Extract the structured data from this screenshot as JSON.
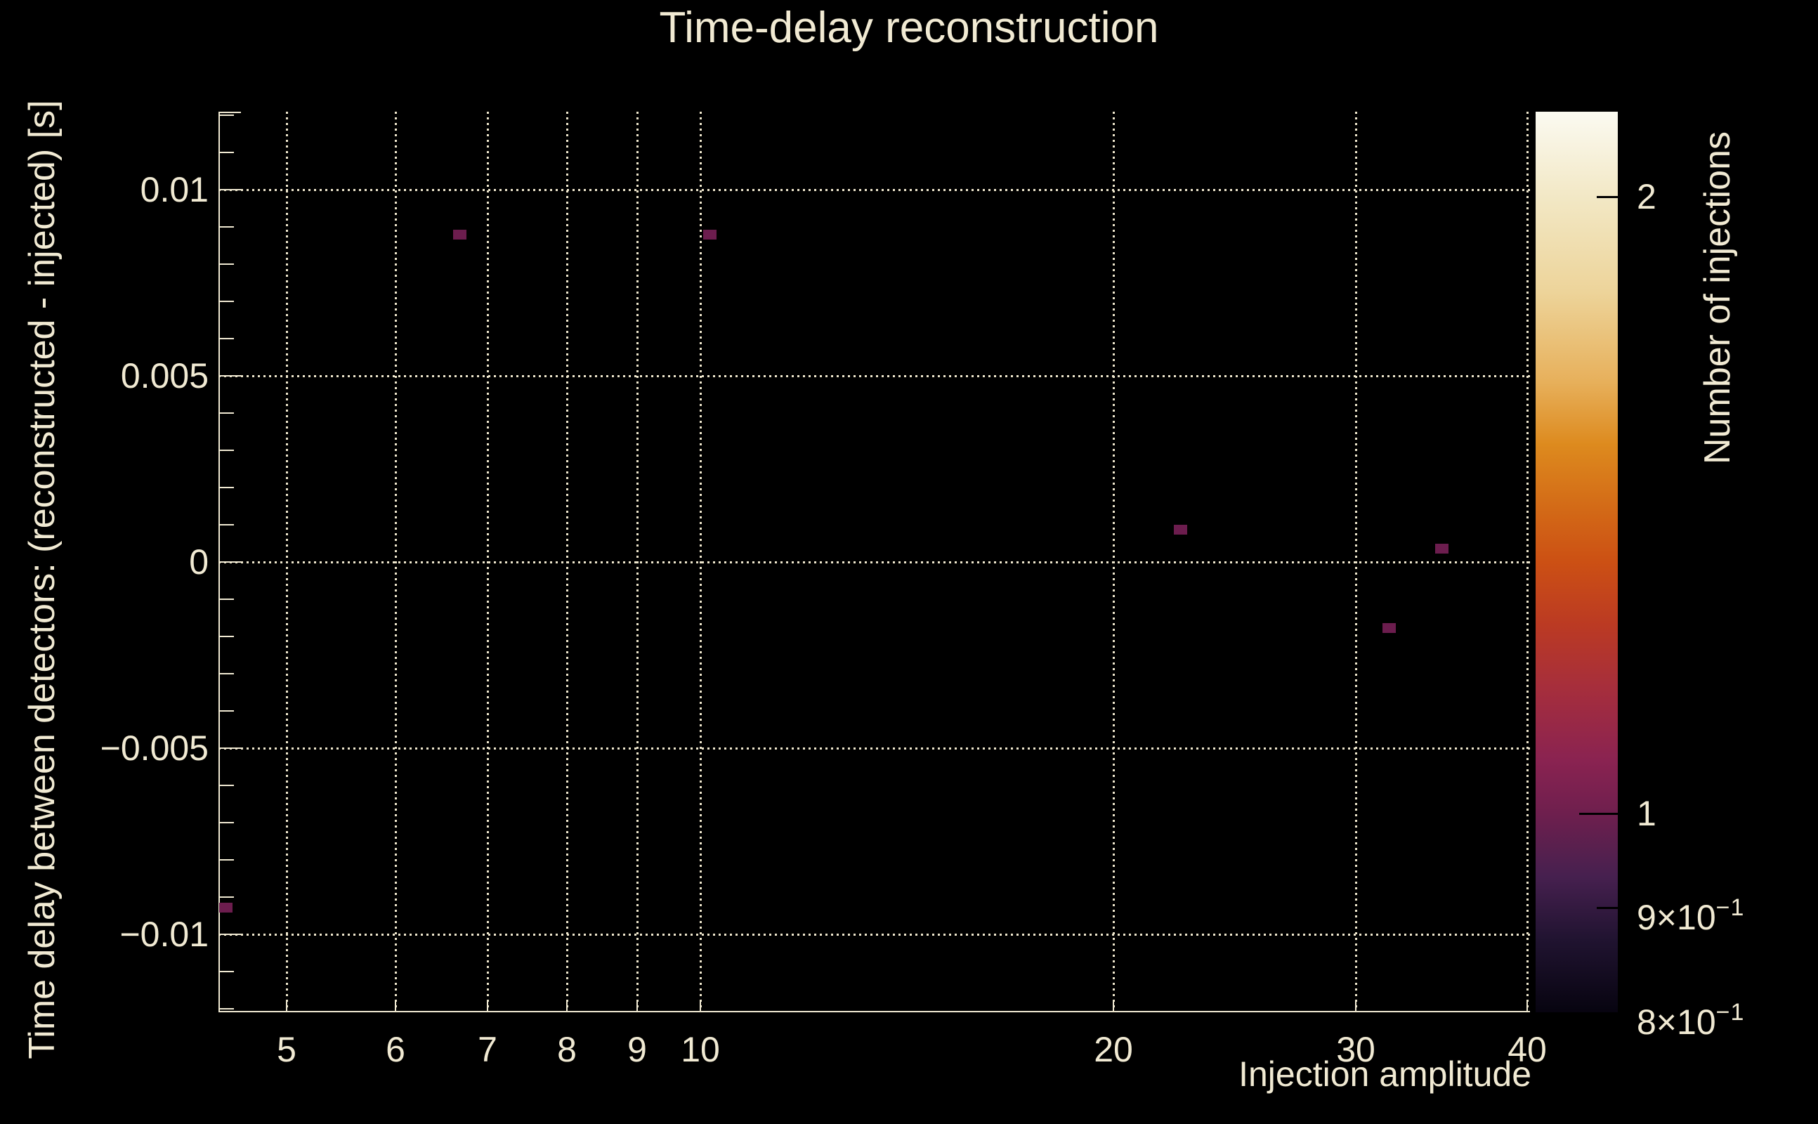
{
  "title": "Time-delay reconstruction",
  "colors": {
    "background": "#000000",
    "text": "#f1ead3",
    "grid": "#efe7cd",
    "axis": "#f1ead3",
    "bin_fill": "#6c1d4e",
    "colorbar_tick": "#000000",
    "colormap_stops": [
      [
        "#fbfaf1",
        0
      ],
      [
        "#f2e7c3",
        10
      ],
      [
        "#edd49a",
        20
      ],
      [
        "#e7b05b",
        30
      ],
      [
        "#dd8a1e",
        37
      ],
      [
        "#d36a17",
        44
      ],
      [
        "#cc5014",
        50
      ],
      [
        "#bb3a23",
        57
      ],
      [
        "#a62e3c",
        64
      ],
      [
        "#8a2351",
        72
      ],
      [
        "#6e1f4e",
        78
      ],
      [
        "#46204f",
        85
      ],
      [
        "#201330",
        92
      ],
      [
        "#070410",
        100
      ]
    ]
  },
  "chart_data": {
    "type": "heatmap",
    "title": "Time-delay reconstruction",
    "xlabel": "Injection amplitude",
    "ylabel": "Time delay between detectors: (reconstructed - injected) [s]",
    "zlabel": "Number of injections",
    "x_scale": "log",
    "y_scale": "linear",
    "z_scale": "log",
    "xlim": [
      4.458,
      40.19
    ],
    "ylim": [
      -0.012094,
      0.012094
    ],
    "zlim": [
      0.8,
      2.2
    ],
    "grid": true,
    "x_ticks": [
      {
        "value": 5,
        "label": "5"
      },
      {
        "value": 6,
        "label": "6"
      },
      {
        "value": 7,
        "label": "7"
      },
      {
        "value": 8,
        "label": "8"
      },
      {
        "value": 9,
        "label": "9"
      },
      {
        "value": 10,
        "label": "10"
      },
      {
        "value": 20,
        "label": "20"
      },
      {
        "value": 30,
        "label": "30"
      },
      {
        "value": 40,
        "label": "40"
      }
    ],
    "y_ticks": [
      {
        "value": 0.01,
        "label": "0.01"
      },
      {
        "value": 0.005,
        "label": "0.005"
      },
      {
        "value": 0,
        "label": "0"
      },
      {
        "value": -0.005,
        "label": "−0.005"
      },
      {
        "value": -0.01,
        "label": "−0.01"
      }
    ],
    "y_minor_tick_step": 0.001,
    "z_ticks": [
      {
        "value": 2,
        "base": "2",
        "exp": "",
        "tick_len": 30
      },
      {
        "value": 1,
        "base": "1",
        "exp": "",
        "tick_len": 55
      },
      {
        "value": 0.9,
        "base": "9×10",
        "exp": "−1",
        "tick_len": 30
      },
      {
        "value": 0.8,
        "base": "8×10",
        "exp": "−1",
        "tick_len": 0
      }
    ],
    "points": [
      {
        "x": 6.68,
        "y": 0.0088,
        "count": 1
      },
      {
        "x": 10.15,
        "y": 0.0088,
        "count": 1
      },
      {
        "x": 22.35,
        "y": 0.00087,
        "count": 1
      },
      {
        "x": 34.66,
        "y": 0.00036,
        "count": 1
      },
      {
        "x": 31.73,
        "y": -0.00178,
        "count": 1
      },
      {
        "x": 4.51,
        "y": -0.00928,
        "count": 1
      }
    ]
  }
}
